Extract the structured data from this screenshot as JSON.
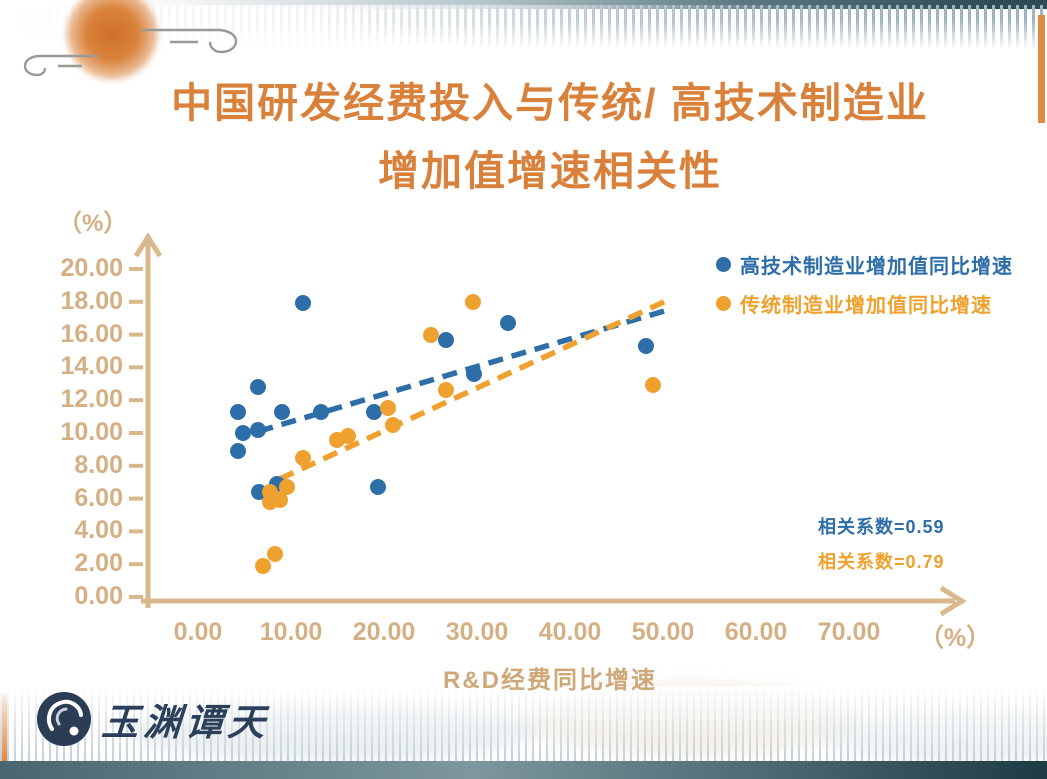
{
  "title": {
    "line1": "中国研发经费投入与传统/ 高技术制造业",
    "line2": "增加值增速相关性"
  },
  "colors": {
    "title": "#d9813b",
    "axis": "#d8b88c",
    "tick_text": "#d5b084",
    "high_tech_blue": "#2d6ea9",
    "traditional_orange": "#efa12f",
    "logo_navy": "#2b3c55"
  },
  "chart_data": {
    "type": "scatter",
    "title": "中国研发经费投入与传统/ 高技术制造业增加值增速相关性",
    "xlabel": "R&D经费同比增速",
    "x_unit": "（%）",
    "y_unit": "（%）",
    "xlim": [
      0,
      80
    ],
    "ylim": [
      0,
      20
    ],
    "x_ticks": [
      "0.00",
      "10.00",
      "20.00",
      "30.00",
      "40.00",
      "50.00",
      "60.00",
      "70.00"
    ],
    "y_ticks": [
      "20.00",
      "18.00",
      "16.00",
      "14.00",
      "12.00",
      "10.00",
      "8.00",
      "6.00",
      "4.00",
      "2.00",
      "0.00"
    ],
    "grid": false,
    "legend_position": "upper right",
    "series": [
      {
        "name": "高技术制造业增加值同比增速",
        "color": "#2d6ea9",
        "correlation_label": "相关系数=0.59",
        "correlation": 0.59,
        "trend_line": {
          "style": "dashed",
          "start": [
            6.5,
            10.1
          ],
          "end": [
            50.5,
            17.5
          ]
        },
        "points": [
          [
            11.3,
            17.9
          ],
          [
            6.5,
            12.8
          ],
          [
            4.3,
            11.3
          ],
          [
            9.0,
            11.3
          ],
          [
            4.8,
            10.0
          ],
          [
            6.4,
            10.2
          ],
          [
            4.3,
            8.9
          ],
          [
            13.2,
            11.3
          ],
          [
            18.9,
            11.3
          ],
          [
            6.6,
            6.4
          ],
          [
            8.5,
            6.9
          ],
          [
            19.4,
            6.7
          ],
          [
            26.7,
            15.7
          ],
          [
            29.7,
            13.6
          ],
          [
            33.3,
            16.7
          ],
          [
            48.2,
            15.3
          ]
        ]
      },
      {
        "name": "传统制造业增加值同比增速",
        "color": "#efa12f",
        "correlation_label": "相关系数=0.79",
        "correlation": 0.79,
        "trend_line": {
          "style": "dashed",
          "start": [
            8.8,
            7.2
          ],
          "end": [
            50.5,
            18.1
          ]
        },
        "points": [
          [
            29.6,
            18.0
          ],
          [
            25.0,
            16.0
          ],
          [
            26.7,
            12.6
          ],
          [
            48.9,
            12.9
          ],
          [
            20.4,
            11.5
          ],
          [
            21.0,
            10.5
          ],
          [
            14.9,
            9.6
          ],
          [
            16.1,
            9.8
          ],
          [
            11.3,
            8.5
          ],
          [
            7.7,
            6.4
          ],
          [
            9.6,
            6.7
          ],
          [
            7.7,
            5.8
          ],
          [
            8.8,
            5.9
          ],
          [
            8.3,
            2.6
          ],
          [
            7.0,
            1.9
          ]
        ]
      }
    ]
  },
  "logo": {
    "text": "玉渊谭天"
  }
}
